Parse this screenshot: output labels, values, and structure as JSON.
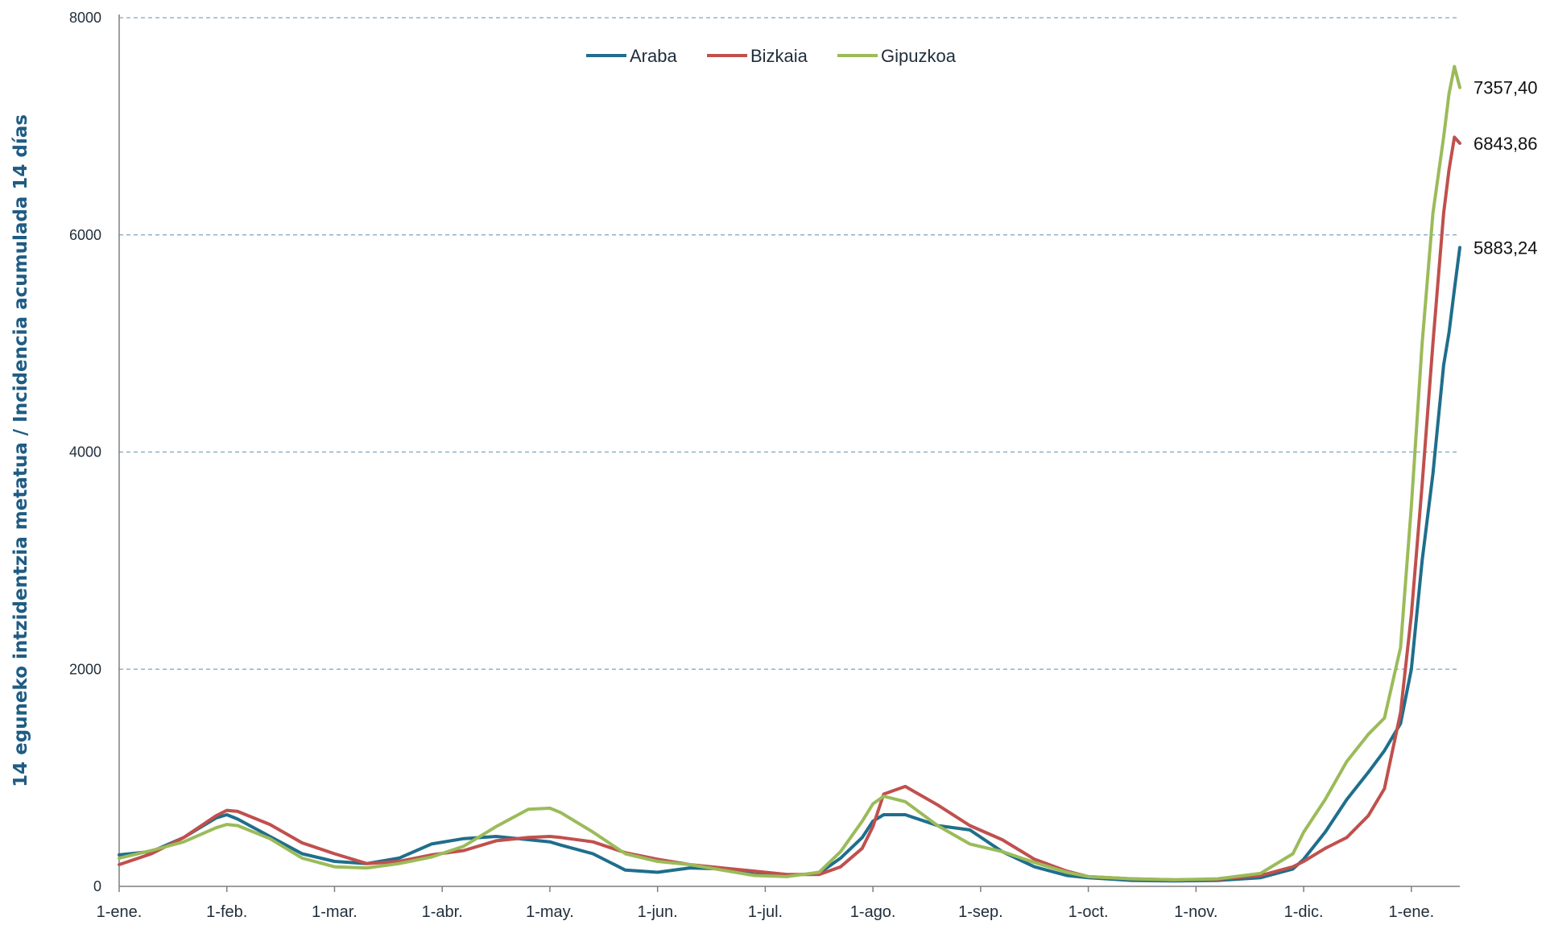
{
  "chart_data": {
    "type": "line",
    "ylabel": "14 eguneko intzidentzia metatua / Incidencia acumulada 14 días",
    "ylim": [
      0,
      8000
    ],
    "yticks": [
      0,
      2000,
      4000,
      6000,
      8000
    ],
    "xlim": [
      0,
      12.45
    ],
    "x_tick_labels": [
      "1-ene.",
      "1-feb.",
      "1-mar.",
      "1-abr.",
      "1-may.",
      "1-jun.",
      "1-jul.",
      "1-ago.",
      "1-sep.",
      "1-oct.",
      "1-nov.",
      "1-dic.",
      "1-ene."
    ],
    "grid": "horizontal-dashed",
    "legend_position": "top-center",
    "x": [
      0,
      0.3,
      0.6,
      0.9,
      1.0,
      1.1,
      1.4,
      1.7,
      2.0,
      2.3,
      2.6,
      2.9,
      3.2,
      3.5,
      3.8,
      4.0,
      4.1,
      4.4,
      4.7,
      5.0,
      5.3,
      5.6,
      5.9,
      6.2,
      6.5,
      6.7,
      6.9,
      7.0,
      7.1,
      7.3,
      7.6,
      7.9,
      8.2,
      8.5,
      8.8,
      9.0,
      9.4,
      9.8,
      10.2,
      10.6,
      10.9,
      11.0,
      11.2,
      11.4,
      11.6,
      11.75,
      11.9,
      12.0,
      12.1,
      12.2,
      12.3,
      12.35,
      12.4,
      12.45
    ],
    "series": [
      {
        "name": "Araba",
        "color": "#1f6e8c",
        "values": [
          290,
          320,
          450,
          630,
          660,
          620,
          460,
          300,
          230,
          210,
          260,
          390,
          440,
          460,
          430,
          410,
          380,
          300,
          150,
          130,
          170,
          160,
          110,
          100,
          120,
          260,
          450,
          600,
          660,
          660,
          560,
          520,
          320,
          180,
          100,
          80,
          55,
          50,
          55,
          80,
          160,
          250,
          500,
          800,
          1050,
          1250,
          1500,
          2000,
          3000,
          3800,
          4800,
          5100,
          5500,
          5883.24
        ],
        "end_label": "5883,24"
      },
      {
        "name": "Bizkaia",
        "color": "#c0504d",
        "values": [
          200,
          300,
          450,
          650,
          700,
          690,
          570,
          400,
          300,
          210,
          230,
          290,
          330,
          420,
          450,
          460,
          450,
          410,
          310,
          250,
          200,
          170,
          140,
          110,
          110,
          180,
          350,
          550,
          850,
          920,
          750,
          560,
          430,
          250,
          140,
          90,
          70,
          60,
          65,
          100,
          180,
          230,
          350,
          450,
          650,
          900,
          1600,
          2500,
          3700,
          5000,
          6200,
          6600,
          6900,
          6843.86
        ],
        "end_label": "6843,86"
      },
      {
        "name": "Gipuzkoa",
        "color": "#9bbb59",
        "values": [
          260,
          330,
          410,
          540,
          570,
          560,
          440,
          260,
          180,
          170,
          210,
          270,
          370,
          550,
          710,
          720,
          680,
          500,
          300,
          230,
          200,
          150,
          100,
          90,
          130,
          320,
          600,
          760,
          830,
          780,
          560,
          390,
          320,
          220,
          130,
          90,
          70,
          60,
          70,
          120,
          300,
          500,
          800,
          1150,
          1400,
          1550,
          2200,
          3500,
          5000,
          6200,
          6900,
          7300,
          7550,
          7357.4
        ],
        "end_label": "7357,40"
      }
    ]
  }
}
